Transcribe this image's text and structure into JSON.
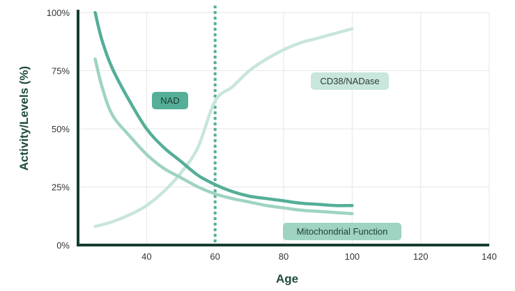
{
  "chart_data": {
    "type": "line",
    "title": "",
    "xlabel": "Age",
    "ylabel": "Activity/Levels (%)",
    "xlim": [
      20,
      140
    ],
    "ylim": [
      0,
      100
    ],
    "x_ticks": [
      40,
      60,
      80,
      100,
      120,
      140
    ],
    "y_ticks": [
      0,
      25,
      50,
      75,
      100
    ],
    "y_tick_labels": [
      "0%",
      "25%",
      "50%",
      "75%",
      "100%"
    ],
    "grid": true,
    "marker_line": {
      "x": 60,
      "style": "dotted"
    },
    "series": [
      {
        "name": "NAD",
        "color": "#55ae98",
        "x": [
          25,
          27,
          30,
          35,
          40,
          45,
          50,
          55,
          60,
          65,
          70,
          75,
          80,
          85,
          90,
          95,
          100
        ],
        "values": [
          100,
          88,
          76,
          62,
          50,
          42,
          36,
          30,
          26,
          23,
          21,
          20,
          19,
          18,
          17.5,
          17,
          17
        ]
      },
      {
        "name": "Mitochondrial Function",
        "color": "#9fd3c2",
        "x": [
          25,
          27,
          30,
          35,
          40,
          45,
          50,
          55,
          60,
          65,
          70,
          75,
          80,
          85,
          90,
          95,
          100
        ],
        "values": [
          80,
          68,
          56,
          47,
          39,
          33,
          29,
          25,
          22,
          20,
          18.5,
          17,
          16,
          15,
          14.5,
          14,
          13.5
        ]
      },
      {
        "name": "CD38/NADase",
        "color": "#c8e6db",
        "x": [
          25,
          30,
          35,
          40,
          45,
          50,
          55,
          60,
          65,
          70,
          75,
          80,
          85,
          90,
          95,
          100
        ],
        "values": [
          8,
          10,
          13,
          17,
          23,
          31,
          42,
          62,
          68,
          75,
          80,
          84,
          87,
          89,
          91,
          93
        ]
      }
    ]
  }
}
